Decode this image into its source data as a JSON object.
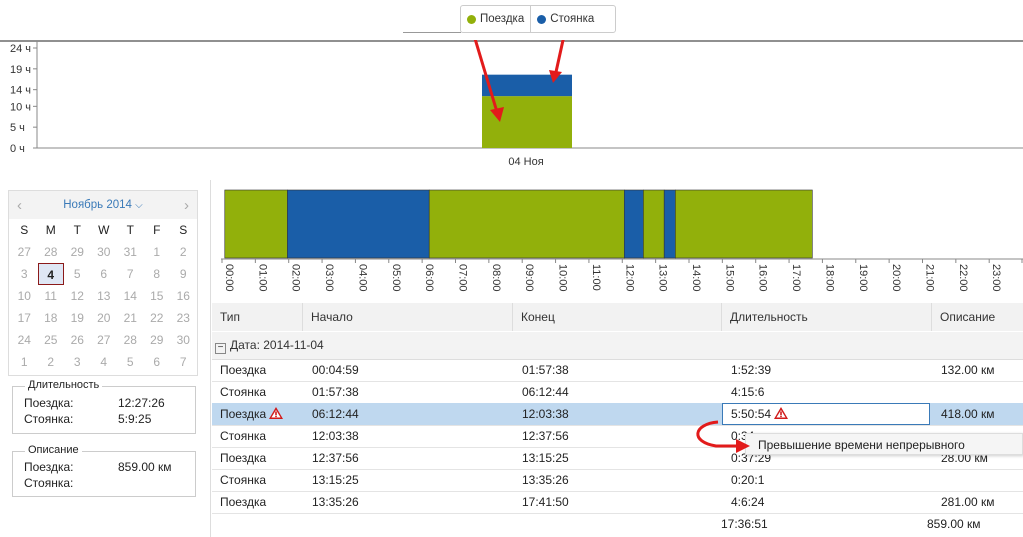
{
  "legend": {
    "items": [
      {
        "label": "Поездка",
        "color": "#92b00b"
      },
      {
        "label": "Стоянка",
        "color": "#1a5ea8"
      }
    ]
  },
  "chart_data": [
    {
      "type": "bar",
      "title": "",
      "categories": [
        "04 Ноя"
      ],
      "series": [
        {
          "name": "Поездка",
          "values": [
            12.45
          ],
          "color": "#92b00b"
        },
        {
          "name": "Стоянка",
          "values": [
            5.15
          ],
          "color": "#1a5ea8"
        }
      ],
      "stacked": true,
      "yticks": [
        "0 ч",
        "5 ч",
        "10 ч",
        "14 ч",
        "19 ч",
        "24 ч"
      ],
      "ylim": [
        0,
        24
      ],
      "legend": "top-center"
    },
    {
      "type": "bar",
      "title": "",
      "orientation": "timeline",
      "segments": [
        {
          "type": "Поездка",
          "start": "00:04:59",
          "end": "01:57:38"
        },
        {
          "type": "Стоянка",
          "start": "01:57:38",
          "end": "06:12:44"
        },
        {
          "type": "Поездка",
          "start": "06:12:44",
          "end": "12:03:38"
        },
        {
          "type": "Стоянка",
          "start": "12:03:38",
          "end": "12:37:56"
        },
        {
          "type": "Поездка",
          "start": "12:37:56",
          "end": "13:15:25"
        },
        {
          "type": "Стоянка",
          "start": "13:15:25",
          "end": "13:35:26"
        },
        {
          "type": "Поездка",
          "start": "13:35:26",
          "end": "17:41:50"
        }
      ],
      "xticks": [
        "00:00",
        "01:00",
        "02:00",
        "03:00",
        "04:00",
        "05:00",
        "06:00",
        "07:00",
        "08:00",
        "09:00",
        "10:00",
        "11:00",
        "12:00",
        "13:00",
        "14:00",
        "15:00",
        "16:00",
        "17:00",
        "18:00",
        "19:00",
        "20:00",
        "21:00",
        "22:00",
        "23:00",
        "23:59"
      ]
    }
  ],
  "calendar": {
    "title": "Ноябрь 2014",
    "dow": [
      "S",
      "M",
      "T",
      "W",
      "T",
      "F",
      "S"
    ],
    "days": [
      "27",
      "28",
      "29",
      "30",
      "31",
      "1",
      "2",
      "3",
      "4",
      "5",
      "6",
      "7",
      "8",
      "9",
      "10",
      "11",
      "12",
      "13",
      "14",
      "15",
      "16",
      "17",
      "18",
      "19",
      "20",
      "21",
      "22",
      "23",
      "24",
      "25",
      "26",
      "27",
      "28",
      "29",
      "30",
      "1",
      "2",
      "3",
      "4",
      "5",
      "6",
      "7"
    ],
    "selected_index": 8
  },
  "duration_box": {
    "title": "Длительность",
    "rows": [
      {
        "label": "Поездка:",
        "value": "12:27:26"
      },
      {
        "label": "Стоянка:",
        "value": "5:9:25"
      }
    ]
  },
  "description_box": {
    "title": "Описание",
    "rows": [
      {
        "label": "Поездка:",
        "value": "859.00 км"
      },
      {
        "label": "Стоянка:",
        "value": ""
      }
    ]
  },
  "table": {
    "headers": [
      "Тип",
      "Начало",
      "Конец",
      "Длительность",
      "Описание"
    ],
    "group_label": "Дата: 2014-11-04",
    "rows": [
      {
        "type": "Поездка",
        "start": "00:04:59",
        "end": "01:57:38",
        "duration": "1:52:39",
        "desc": "132.00 км",
        "warn": false
      },
      {
        "type": "Стоянка",
        "start": "01:57:38",
        "end": "06:12:44",
        "duration": "4:15:6",
        "desc": "",
        "warn": false
      },
      {
        "type": "Поездка",
        "start": "06:12:44",
        "end": "12:03:38",
        "duration": "5:50:54",
        "desc": "418.00 км",
        "warn": true
      },
      {
        "type": "Стоянка",
        "start": "12:03:38",
        "end": "12:37:56",
        "duration": "0:34",
        "desc": "",
        "warn": false
      },
      {
        "type": "Поездка",
        "start": "12:37:56",
        "end": "13:15:25",
        "duration": "0:37:29",
        "desc": "28.00 км",
        "warn": false
      },
      {
        "type": "Стоянка",
        "start": "13:15:25",
        "end": "13:35:26",
        "duration": "0:20:1",
        "desc": "",
        "warn": false
      },
      {
        "type": "Поездка",
        "start": "13:35:26",
        "end": "17:41:50",
        "duration": "4:6:24",
        "desc": "281.00 км",
        "warn": false
      }
    ],
    "total_duration": "17:36:51",
    "total_desc": "859.00 км",
    "selected_row": 2
  },
  "tooltip": {
    "text": "Превышение времени непрерывного"
  }
}
